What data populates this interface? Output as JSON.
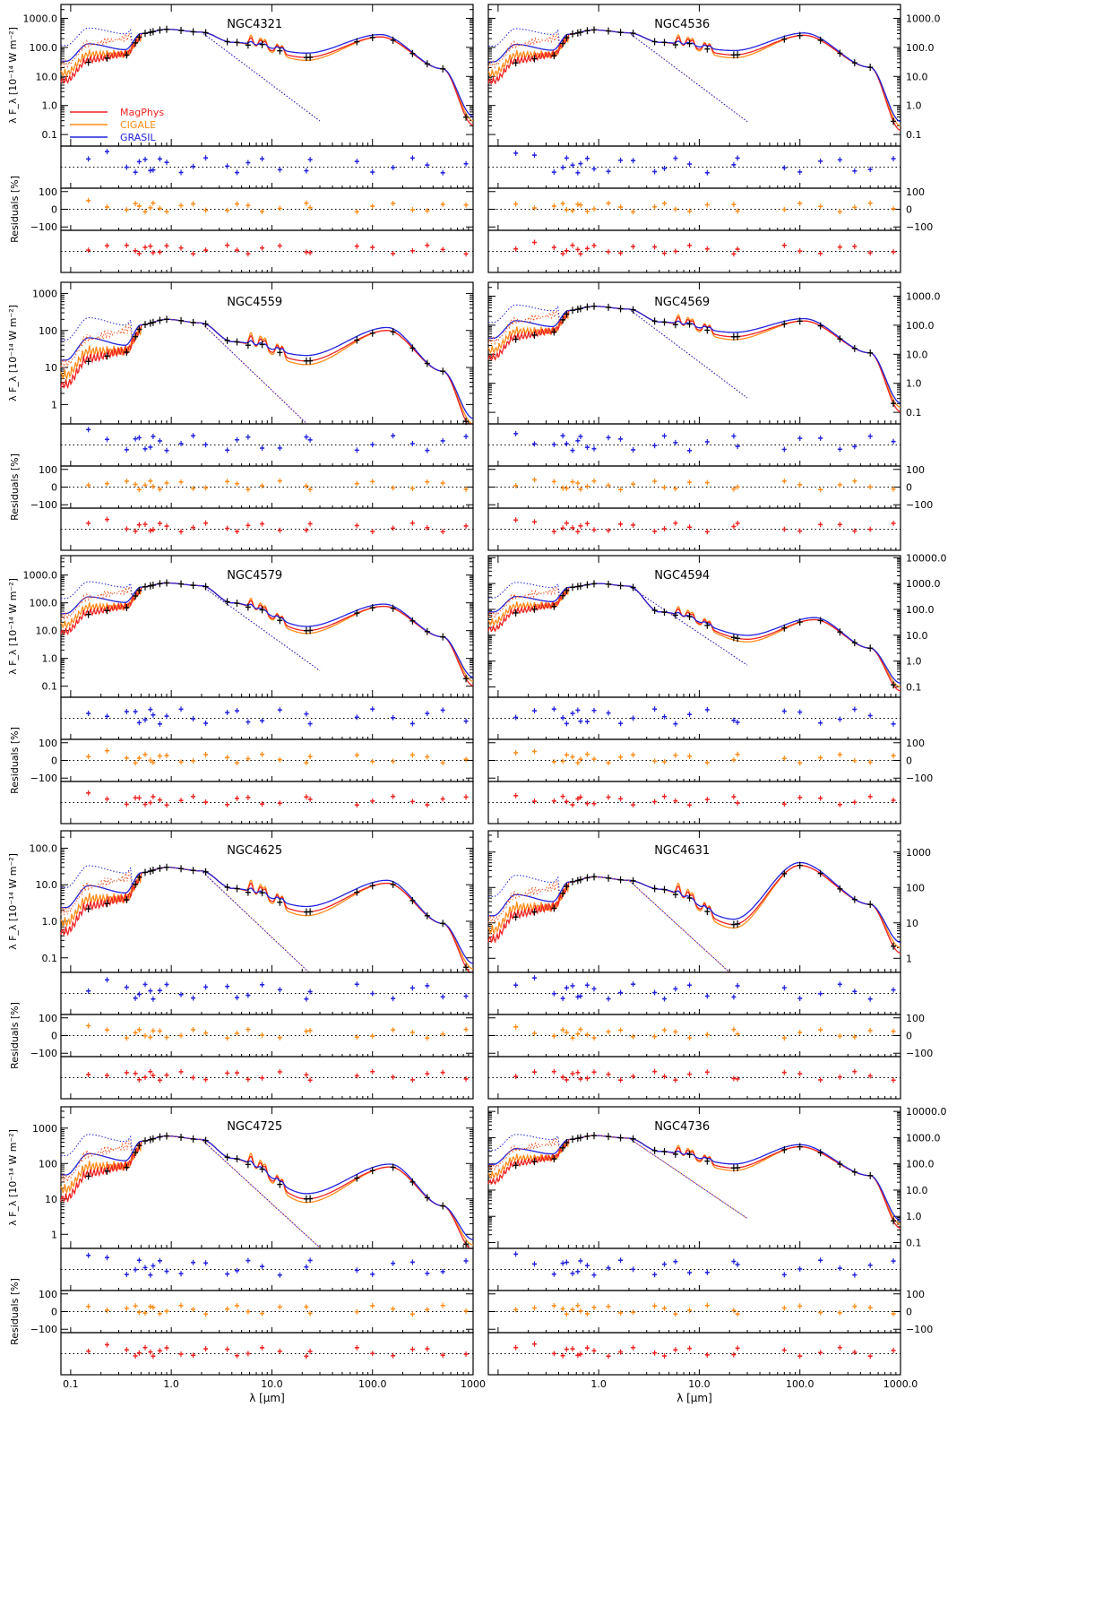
{
  "chart_data": {
    "type": "line",
    "figure_xlabel": "λ [μm]",
    "sed_ylabel": "λ F_λ [10⁻¹⁴ W m⁻²]",
    "residual_ylabel": "Residuals [%]",
    "x_scale": "log",
    "xlim": [
      0.08,
      1000
    ],
    "left_xticks": [
      "0.1",
      "1.0",
      "10.0",
      "100.0",
      "1000"
    ],
    "right_xticks": [
      "1.0",
      "10.0",
      "100.0",
      "1000.0"
    ],
    "residual_ticks": [
      "100",
      "0",
      "−100"
    ],
    "legend": [
      {
        "name": "MagPhys",
        "color": "#ee2222"
      },
      {
        "name": "CIGALE",
        "color": "#ff8c1a"
      },
      {
        "name": "GRASIL",
        "color": "#2222dd"
      }
    ],
    "residual_colors": [
      "#2222dd",
      "#ff8c1a",
      "#ee2222"
    ],
    "panels": [
      {
        "galaxy": "NGC4321",
        "side": "left",
        "ylim": [
          0.04,
          3000
        ],
        "ytick_labels": [
          "1000.0",
          "100.0",
          "10.0",
          "1.0",
          "0.1"
        ],
        "stellar_peak": [
          0.9,
          420
        ],
        "mid": [
          4,
          150
        ],
        "pah": 60,
        "dust_trough": [
          22,
          45
        ],
        "dust_peak": [
          120,
          230
        ],
        "end": 0.3
      },
      {
        "galaxy": "NGC4536",
        "side": "right",
        "ylim": [
          0.04,
          3000
        ],
        "ytick_labels": [
          "1000.0",
          "100.0",
          "10.0",
          "1.0",
          "0.1"
        ],
        "stellar_peak": [
          0.9,
          400
        ],
        "mid": [
          4,
          150
        ],
        "pah": 60,
        "dust_trough": [
          22,
          55
        ],
        "dust_peak": [
          110,
          260
        ],
        "end": 0.2
      },
      {
        "galaxy": "NGC4559",
        "side": "left",
        "ylim": [
          0.3,
          2000
        ],
        "ytick_labels": [
          "1000",
          "100",
          "10",
          "1"
        ],
        "stellar_peak": [
          0.9,
          200
        ],
        "mid": [
          4,
          50
        ],
        "pah": 12,
        "dust_trough": [
          22,
          15
        ],
        "dust_peak": [
          140,
          100
        ],
        "end": 0.3
      },
      {
        "galaxy": "NGC4569",
        "side": "right",
        "ylim": [
          0.04,
          3000
        ],
        "ytick_labels": [
          "1000.0",
          "100.0",
          "10.0",
          "1.0",
          "0.1"
        ],
        "stellar_peak": [
          0.9,
          450
        ],
        "mid": [
          4,
          130
        ],
        "pah": 55,
        "dust_trough": [
          22,
          40
        ],
        "dust_peak": [
          110,
          140
        ],
        "end": 0.15
      },
      {
        "galaxy": "NGC4579",
        "side": "left",
        "ylim": [
          0.04,
          5000
        ],
        "ytick_labels": [
          "1000.0",
          "100.0",
          "10.0",
          "1.0",
          "0.1"
        ],
        "stellar_peak": [
          0.9,
          520
        ],
        "mid": [
          4,
          100
        ],
        "pah": 20,
        "dust_trough": [
          22,
          10
        ],
        "dust_peak": [
          130,
          75
        ],
        "end": 0.15
      },
      {
        "galaxy": "NGC4594",
        "side": "right",
        "ylim": [
          0.04,
          12000
        ],
        "ytick_labels": [
          "10000.0",
          "1000.0",
          "100.0",
          "10.0",
          "1.0",
          "0.1"
        ],
        "stellar_peak": [
          1.0,
          1000
        ],
        "mid": [
          4,
          80
        ],
        "pah": 12,
        "dust_trough": [
          30,
          7
        ],
        "dust_peak": [
          140,
          40
        ],
        "end": 0.1
      },
      {
        "galaxy": "NGC4625",
        "side": "left",
        "ylim": [
          0.04,
          300
        ],
        "ytick_labels": [
          "100.0",
          "10.0",
          "1.0",
          "0.1"
        ],
        "stellar_peak": [
          0.9,
          30
        ],
        "mid": [
          4,
          8
        ],
        "pah": 3.5,
        "dust_trough": [
          22,
          1.8
        ],
        "dust_peak": [
          140,
          11
        ],
        "end": 0.05
      },
      {
        "galaxy": "NGC4631",
        "side": "right",
        "ylim": [
          0.4,
          4000
        ],
        "ytick_labels": [
          "1000",
          "100",
          "10",
          "1"
        ],
        "stellar_peak": [
          0.9,
          200
        ],
        "mid": [
          4,
          90
        ],
        "pah": 35,
        "dust_trough": [
          22,
          9
        ],
        "dust_peak": [
          100,
          420
        ],
        "end": 2
      },
      {
        "galaxy": "NGC4725",
        "side": "left",
        "ylim": [
          0.4,
          4000
        ],
        "ytick_labels": [
          "1000",
          "100",
          "10",
          "1"
        ],
        "stellar_peak": [
          0.9,
          600
        ],
        "mid": [
          4,
          140
        ],
        "pah": 30,
        "dust_trough": [
          22,
          10
        ],
        "dust_peak": [
          150,
          80
        ],
        "end": 0.5
      },
      {
        "galaxy": "NGC4736",
        "side": "right",
        "ylim": [
          0.06,
          15000
        ],
        "ytick_labels": [
          "10000.0",
          "1000.0",
          "100.0",
          "10.0",
          "1.0",
          "0.1"
        ],
        "stellar_peak": [
          0.9,
          1200
        ],
        "mid": [
          4,
          300
        ],
        "pah": 120,
        "dust_trough": [
          22,
          70
        ],
        "dust_peak": [
          100,
          450
        ],
        "end": 0.5
      }
    ]
  }
}
